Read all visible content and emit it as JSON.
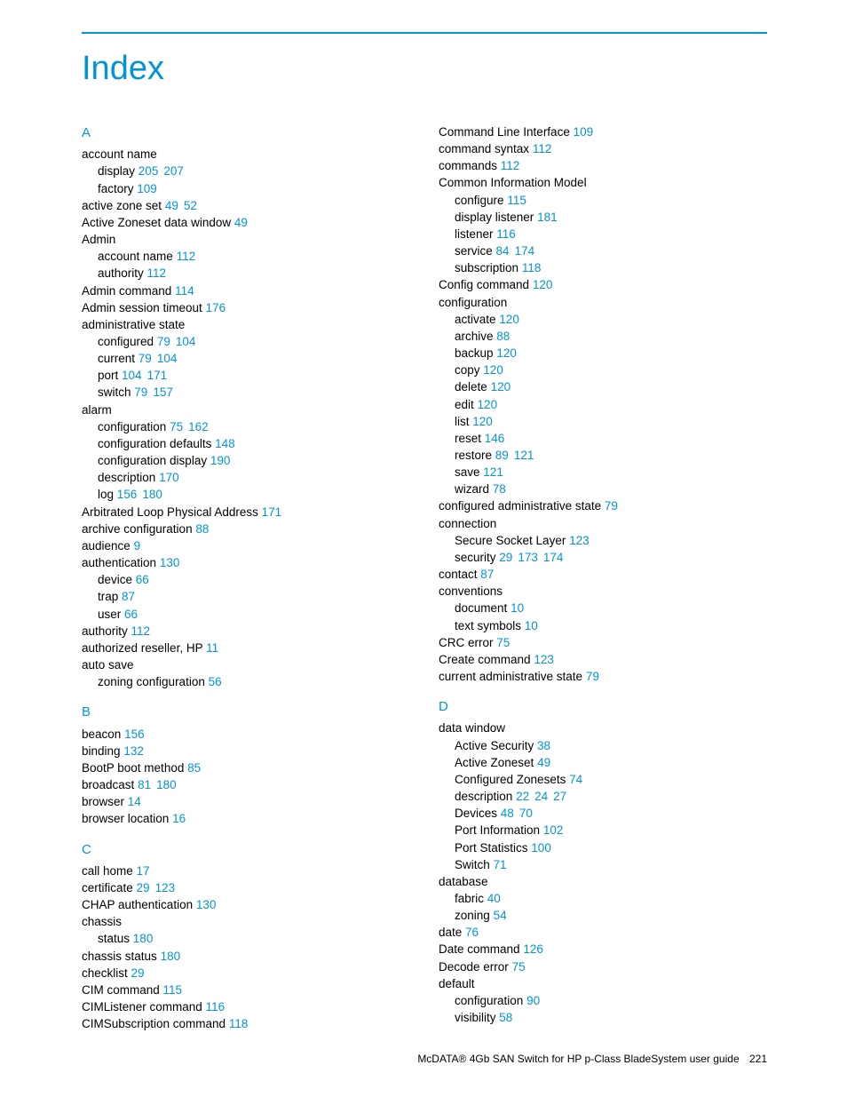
{
  "colors": {
    "accent": "#0096d6",
    "text": "#000000",
    "background": "#ffffff"
  },
  "typography": {
    "title_fontsize": 38,
    "body_fontsize": 13.5,
    "letter_fontsize": 15,
    "footer_fontsize": 12,
    "line_height": 1.42,
    "font_family": "Arial, Helvetica, sans-serif"
  },
  "title": "Index",
  "footer": {
    "text": "McDATA® 4Gb SAN Switch for HP p-Class BladeSystem user guide",
    "page": "221"
  },
  "left": [
    {
      "type": "letter",
      "text": "A"
    },
    {
      "type": "entry",
      "text": "account name"
    },
    {
      "type": "sub",
      "text": "display",
      "pages": [
        "205",
        "207"
      ]
    },
    {
      "type": "sub",
      "text": "factory",
      "pages": [
        "109"
      ]
    },
    {
      "type": "entry",
      "text": "active zone set",
      "pages": [
        "49",
        "52"
      ]
    },
    {
      "type": "entry",
      "text": "Active Zoneset data window",
      "pages": [
        "49"
      ]
    },
    {
      "type": "entry",
      "text": "Admin"
    },
    {
      "type": "sub",
      "text": "account name",
      "pages": [
        "112"
      ]
    },
    {
      "type": "sub",
      "text": "authority",
      "pages": [
        "112"
      ]
    },
    {
      "type": "entry",
      "text": "Admin command",
      "pages": [
        "114"
      ]
    },
    {
      "type": "entry",
      "text": "Admin session timeout",
      "pages": [
        "176"
      ]
    },
    {
      "type": "entry",
      "text": "administrative state"
    },
    {
      "type": "sub",
      "text": "configured",
      "pages": [
        "79",
        "104"
      ]
    },
    {
      "type": "sub",
      "text": "current",
      "pages": [
        "79",
        "104"
      ]
    },
    {
      "type": "sub",
      "text": "port",
      "pages": [
        "104",
        "171"
      ]
    },
    {
      "type": "sub",
      "text": "switch",
      "pages": [
        "79",
        "157"
      ]
    },
    {
      "type": "entry",
      "text": "alarm"
    },
    {
      "type": "sub",
      "text": "configuration",
      "pages": [
        "75",
        "162"
      ]
    },
    {
      "type": "sub",
      "text": "configuration defaults",
      "pages": [
        "148"
      ]
    },
    {
      "type": "sub",
      "text": "configuration display",
      "pages": [
        "190"
      ]
    },
    {
      "type": "sub",
      "text": "description",
      "pages": [
        "170"
      ]
    },
    {
      "type": "sub",
      "text": "log",
      "pages": [
        "156",
        "180"
      ]
    },
    {
      "type": "entry",
      "text": "Arbitrated Loop Physical Address",
      "pages": [
        "171"
      ]
    },
    {
      "type": "entry",
      "text": "archive configuration",
      "pages": [
        "88"
      ]
    },
    {
      "type": "entry",
      "text": "audience",
      "pages": [
        "9"
      ]
    },
    {
      "type": "entry",
      "text": "authentication",
      "pages": [
        "130"
      ]
    },
    {
      "type": "sub",
      "text": "device",
      "pages": [
        "66"
      ]
    },
    {
      "type": "sub",
      "text": "trap",
      "pages": [
        "87"
      ]
    },
    {
      "type": "sub",
      "text": "user",
      "pages": [
        "66"
      ]
    },
    {
      "type": "entry",
      "text": "authority",
      "pages": [
        "112"
      ]
    },
    {
      "type": "entry",
      "text": "authorized reseller, HP",
      "pages": [
        "11"
      ]
    },
    {
      "type": "entry",
      "text": "auto save"
    },
    {
      "type": "sub",
      "text": "zoning configuration",
      "pages": [
        "56"
      ]
    },
    {
      "type": "letter",
      "text": "B"
    },
    {
      "type": "entry",
      "text": "beacon",
      "pages": [
        "156"
      ]
    },
    {
      "type": "entry",
      "text": "binding",
      "pages": [
        "132"
      ]
    },
    {
      "type": "entry",
      "text": "BootP boot method",
      "pages": [
        "85"
      ]
    },
    {
      "type": "entry",
      "text": "broadcast",
      "pages": [
        "81",
        "180"
      ]
    },
    {
      "type": "entry",
      "text": "browser",
      "pages": [
        "14"
      ]
    },
    {
      "type": "entry",
      "text": "browser location",
      "pages": [
        "16"
      ]
    },
    {
      "type": "letter",
      "text": "C"
    },
    {
      "type": "entry",
      "text": "call home",
      "pages": [
        "17"
      ]
    },
    {
      "type": "entry",
      "text": "certificate",
      "pages": [
        "29",
        "123"
      ]
    },
    {
      "type": "entry",
      "text": "CHAP authentication",
      "pages": [
        "130"
      ]
    },
    {
      "type": "entry",
      "text": "chassis"
    },
    {
      "type": "sub",
      "text": "status",
      "pages": [
        "180"
      ]
    },
    {
      "type": "entry",
      "text": "chassis status",
      "pages": [
        "180"
      ]
    },
    {
      "type": "entry",
      "text": "checklist",
      "pages": [
        "29"
      ]
    },
    {
      "type": "entry",
      "text": "CIM command",
      "pages": [
        "115"
      ]
    },
    {
      "type": "entry",
      "text": "CIMListener command",
      "pages": [
        "116"
      ]
    },
    {
      "type": "entry",
      "text": "CIMSubscription command",
      "pages": [
        "118"
      ]
    }
  ],
  "right": [
    {
      "type": "entry",
      "text": "Command Line Interface",
      "pages": [
        "109"
      ]
    },
    {
      "type": "entry",
      "text": "command syntax",
      "pages": [
        "112"
      ]
    },
    {
      "type": "entry",
      "text": "commands",
      "pages": [
        "112"
      ]
    },
    {
      "type": "entry",
      "text": "Common Information Model"
    },
    {
      "type": "sub",
      "text": "configure",
      "pages": [
        "115"
      ]
    },
    {
      "type": "sub",
      "text": "display listener",
      "pages": [
        "181"
      ]
    },
    {
      "type": "sub",
      "text": "listener",
      "pages": [
        "116"
      ]
    },
    {
      "type": "sub",
      "text": "service",
      "pages": [
        "84",
        "174"
      ]
    },
    {
      "type": "sub",
      "text": "subscription",
      "pages": [
        "118"
      ]
    },
    {
      "type": "entry",
      "text": "Config command",
      "pages": [
        "120"
      ]
    },
    {
      "type": "entry",
      "text": "configuration"
    },
    {
      "type": "sub",
      "text": "activate",
      "pages": [
        "120"
      ]
    },
    {
      "type": "sub",
      "text": "archive",
      "pages": [
        "88"
      ]
    },
    {
      "type": "sub",
      "text": "backup",
      "pages": [
        "120"
      ]
    },
    {
      "type": "sub",
      "text": "copy",
      "pages": [
        "120"
      ]
    },
    {
      "type": "sub",
      "text": "delete",
      "pages": [
        "120"
      ]
    },
    {
      "type": "sub",
      "text": "edit",
      "pages": [
        "120"
      ]
    },
    {
      "type": "sub",
      "text": "list",
      "pages": [
        "120"
      ]
    },
    {
      "type": "sub",
      "text": "reset",
      "pages": [
        "146"
      ]
    },
    {
      "type": "sub",
      "text": "restore",
      "pages": [
        "89",
        "121"
      ]
    },
    {
      "type": "sub",
      "text": "save",
      "pages": [
        "121"
      ]
    },
    {
      "type": "sub",
      "text": "wizard",
      "pages": [
        "78"
      ]
    },
    {
      "type": "entry",
      "text": "configured administrative state",
      "pages": [
        "79"
      ]
    },
    {
      "type": "entry",
      "text": "connection"
    },
    {
      "type": "sub",
      "text": "Secure Socket Layer",
      "pages": [
        "123"
      ]
    },
    {
      "type": "sub",
      "text": "security",
      "pages": [
        "29",
        "173",
        "174"
      ]
    },
    {
      "type": "entry",
      "text": "contact",
      "pages": [
        "87"
      ]
    },
    {
      "type": "entry",
      "text": "conventions"
    },
    {
      "type": "sub",
      "text": "document",
      "pages": [
        "10"
      ]
    },
    {
      "type": "sub",
      "text": "text symbols",
      "pages": [
        "10"
      ]
    },
    {
      "type": "entry",
      "text": "CRC error",
      "pages": [
        "75"
      ]
    },
    {
      "type": "entry",
      "text": "Create command",
      "pages": [
        "123"
      ]
    },
    {
      "type": "entry",
      "text": "current administrative state",
      "pages": [
        "79"
      ]
    },
    {
      "type": "letter",
      "text": "D"
    },
    {
      "type": "entry",
      "text": "data window"
    },
    {
      "type": "sub",
      "text": "Active Security",
      "pages": [
        "38"
      ]
    },
    {
      "type": "sub",
      "text": "Active Zoneset",
      "pages": [
        "49"
      ]
    },
    {
      "type": "sub",
      "text": "Configured Zonesets",
      "pages": [
        "74"
      ]
    },
    {
      "type": "sub",
      "text": "description",
      "pages": [
        "22",
        "24",
        "27"
      ]
    },
    {
      "type": "sub",
      "text": "Devices",
      "pages": [
        "48",
        "70"
      ]
    },
    {
      "type": "sub",
      "text": "Port Information",
      "pages": [
        "102"
      ]
    },
    {
      "type": "sub",
      "text": "Port Statistics",
      "pages": [
        "100"
      ]
    },
    {
      "type": "sub",
      "text": "Switch",
      "pages": [
        "71"
      ]
    },
    {
      "type": "entry",
      "text": "database"
    },
    {
      "type": "sub",
      "text": "fabric",
      "pages": [
        "40"
      ]
    },
    {
      "type": "sub",
      "text": "zoning",
      "pages": [
        "54"
      ]
    },
    {
      "type": "entry",
      "text": "date",
      "pages": [
        "76"
      ]
    },
    {
      "type": "entry",
      "text": "Date command",
      "pages": [
        "126"
      ]
    },
    {
      "type": "entry",
      "text": "Decode error",
      "pages": [
        "75"
      ]
    },
    {
      "type": "entry",
      "text": "default"
    },
    {
      "type": "sub",
      "text": "configuration",
      "pages": [
        "90"
      ]
    },
    {
      "type": "sub",
      "text": "visibility",
      "pages": [
        "58"
      ]
    }
  ]
}
